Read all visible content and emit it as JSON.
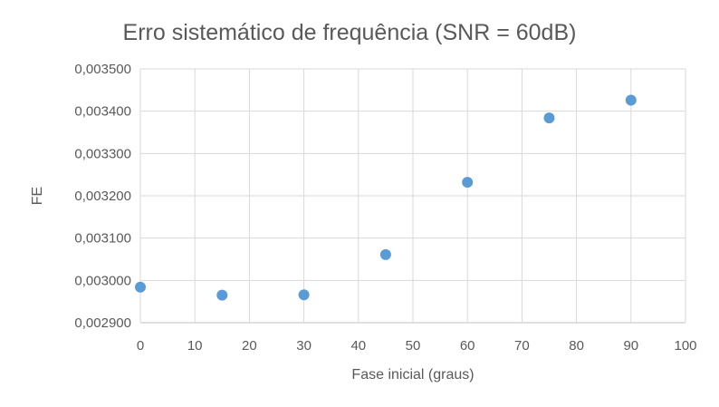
{
  "chart_data": {
    "type": "scatter",
    "title": "Erro sistemático de frequência (SNR = 60dB)",
    "xlabel": "Fase inicial (graus)",
    "ylabel": "FE",
    "xlim": [
      0,
      100
    ],
    "ylim": [
      0.0029,
      0.0035
    ],
    "x_ticks": [
      "0",
      "10",
      "20",
      "30",
      "40",
      "50",
      "60",
      "70",
      "80",
      "90",
      "100"
    ],
    "y_ticks": [
      "0,002900",
      "0,003000",
      "0,003100",
      "0,003200",
      "0,003300",
      "0,003400",
      "0,003500"
    ],
    "grid": true,
    "legend": "none",
    "marker_color": "#5b9bd5",
    "series": [
      {
        "x": [
          0,
          15,
          30,
          45,
          60,
          75,
          90
        ],
        "y": [
          0.002984,
          0.002965,
          0.002966,
          0.003061,
          0.003232,
          0.003384,
          0.003426
        ]
      }
    ]
  }
}
